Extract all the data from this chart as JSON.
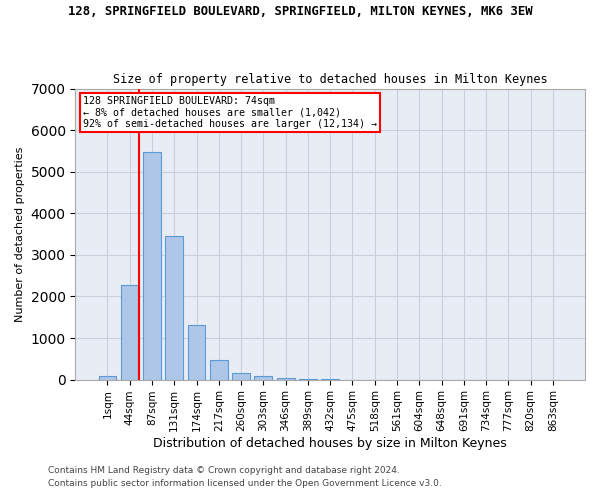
{
  "title": "128, SPRINGFIELD BOULEVARD, SPRINGFIELD, MILTON KEYNES, MK6 3EW",
  "subtitle": "Size of property relative to detached houses in Milton Keynes",
  "xlabel": "Distribution of detached houses by size in Milton Keynes",
  "ylabel": "Number of detached properties",
  "bar_color": "#aec6e8",
  "bar_edge_color": "#5b9bd5",
  "categories": [
    "1sqm",
    "44sqm",
    "87sqm",
    "131sqm",
    "174sqm",
    "217sqm",
    "260sqm",
    "303sqm",
    "346sqm",
    "389sqm",
    "432sqm",
    "475sqm",
    "518sqm",
    "561sqm",
    "604sqm",
    "648sqm",
    "691sqm",
    "734sqm",
    "777sqm",
    "820sqm",
    "863sqm"
  ],
  "values": [
    80,
    2270,
    5470,
    3450,
    1320,
    470,
    155,
    80,
    40,
    10,
    4,
    0,
    0,
    0,
    0,
    0,
    0,
    0,
    0,
    0,
    0
  ],
  "ylim": [
    0,
    7000
  ],
  "yticks": [
    0,
    1000,
    2000,
    3000,
    4000,
    5000,
    6000,
    7000
  ],
  "property_label": "128 SPRINGFIELD BOULEVARD: 74sqm",
  "annotation_line1": "← 8% of detached houses are smaller (1,042)",
  "annotation_line2": "92% of semi-detached houses are larger (12,134) →",
  "red_line_x": 1.4,
  "background_color": "#ffffff",
  "plot_bg_color": "#e8edf5",
  "grid_color": "#c8d0e0",
  "footer_line1": "Contains HM Land Registry data © Crown copyright and database right 2024.",
  "footer_line2": "Contains public sector information licensed under the Open Government Licence v3.0."
}
